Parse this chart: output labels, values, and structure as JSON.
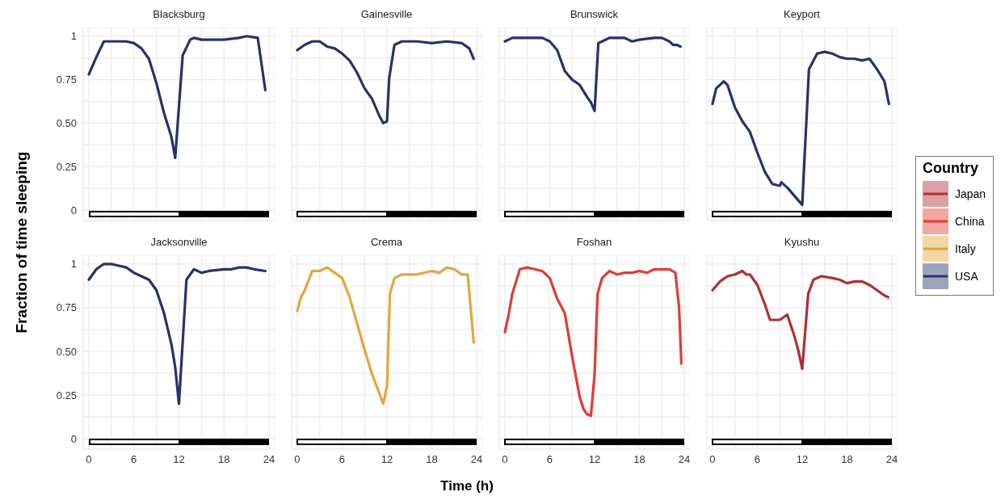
{
  "chart_data": [
    {
      "type": "line",
      "title": "Blacksburg",
      "ylabel": "Fraction of time sleeping",
      "xlim": [
        -0.75,
        24.75
      ],
      "xticks": [
        0,
        {
          "value": 3,
          "label": null
        },
        6,
        {
          "value": 9,
          "label": null
        },
        12,
        {
          "value": 15,
          "label": null
        },
        18,
        {
          "value": 21,
          "label": null
        },
        24
      ],
      "ylim": [
        -0.06,
        1.05
      ],
      "yticks": [
        0,
        {
          "value": 0.125,
          "label": null
        },
        0.25,
        {
          "value": 0.375,
          "label": null
        },
        {
          "value": 0.5,
          "label": "0.50"
        },
        {
          "value": 0.625,
          "label": null
        },
        0.75,
        {
          "value": 0.875,
          "label": null
        },
        1
      ],
      "grid": true,
      "tick_labels": "y",
      "series": [
        {
          "name": "USA",
          "color": "#27326a",
          "x": [
            0,
            1,
            2,
            3,
            4,
            5,
            6,
            7,
            8,
            9,
            10,
            11,
            11.5,
            12.5,
            13.5,
            14,
            15,
            17,
            18,
            20,
            21,
            22.5,
            23.5
          ],
          "values": [
            0.78,
            0.88,
            0.97,
            0.97,
            0.97,
            0.97,
            0.96,
            0.93,
            0.87,
            0.73,
            0.56,
            0.42,
            0.3,
            0.89,
            0.98,
            0.99,
            0.98,
            0.98,
            0.98,
            0.99,
            1,
            0.99,
            0.69
          ]
        }
      ]
    },
    {
      "type": "line",
      "title": "Gainesville",
      "xlim": [
        -0.75,
        24.75
      ],
      "xticks": [
        0,
        3,
        6,
        9,
        12,
        15,
        18,
        21,
        24
      ],
      "ylim": [
        -0.06,
        1.05
      ],
      "yticks": [
        0,
        0.125,
        0.25,
        0.375,
        0.5,
        0.625,
        0.75,
        0.875,
        1
      ],
      "grid": true,
      "tick_labels": false,
      "series": [
        {
          "name": "USA",
          "color": "#27326a",
          "x": [
            0,
            1,
            2,
            3,
            4,
            5,
            6,
            7,
            8,
            9,
            10,
            11,
            11.5,
            12,
            12.3,
            13,
            14,
            16,
            18,
            20,
            22,
            23,
            23.6
          ],
          "values": [
            0.92,
            0.95,
            0.97,
            0.97,
            0.94,
            0.93,
            0.9,
            0.86,
            0.79,
            0.7,
            0.64,
            0.54,
            0.5,
            0.51,
            0.76,
            0.95,
            0.97,
            0.97,
            0.96,
            0.97,
            0.96,
            0.93,
            0.87
          ]
        }
      ]
    },
    {
      "type": "line",
      "title": "Brunswick",
      "xlim": [
        -0.75,
        24.75
      ],
      "xticks": [
        0,
        3,
        6,
        9,
        12,
        15,
        18,
        21,
        24
      ],
      "ylim": [
        -0.06,
        1.05
      ],
      "yticks": [
        0,
        0.125,
        0.25,
        0.375,
        0.5,
        0.625,
        0.75,
        0.875,
        1
      ],
      "grid": true,
      "tick_labels": false,
      "series": [
        {
          "name": "USA",
          "color": "#27326a",
          "x": [
            0,
            1,
            2,
            4,
            5,
            6,
            7,
            8,
            9,
            10,
            11,
            11.5,
            12,
            12.5,
            13,
            14,
            16,
            17,
            18,
            20,
            21,
            22,
            22.5,
            23,
            23.5
          ],
          "values": [
            0.97,
            0.99,
            0.99,
            0.99,
            0.99,
            0.97,
            0.92,
            0.8,
            0.75,
            0.72,
            0.65,
            0.62,
            0.57,
            0.96,
            0.97,
            0.99,
            0.99,
            0.97,
            0.98,
            0.99,
            0.99,
            0.97,
            0.95,
            0.95,
            0.94
          ]
        }
      ]
    },
    {
      "type": "line",
      "title": "Keyport",
      "xlim": [
        -0.75,
        24.75
      ],
      "xticks": [
        0,
        3,
        6,
        9,
        12,
        15,
        18,
        21,
        24
      ],
      "ylim": [
        -0.06,
        1.05
      ],
      "yticks": [
        0,
        0.125,
        0.25,
        0.375,
        0.5,
        0.625,
        0.75,
        0.875,
        1
      ],
      "grid": true,
      "tick_labels": false,
      "series": [
        {
          "name": "USA",
          "color": "#27326a",
          "x": [
            0,
            0.5,
            1,
            1.5,
            2,
            3,
            4,
            5,
            6,
            7,
            8,
            9,
            9.2,
            10,
            11,
            12,
            12.9,
            14,
            15,
            16,
            17,
            18,
            19,
            20,
            21,
            22,
            23,
            23.6
          ],
          "values": [
            0.61,
            0.7,
            0.72,
            0.74,
            0.72,
            0.59,
            0.51,
            0.45,
            0.33,
            0.22,
            0.15,
            0.14,
            0.16,
            0.13,
            0.08,
            0.03,
            0.81,
            0.9,
            0.91,
            0.9,
            0.88,
            0.87,
            0.87,
            0.86,
            0.87,
            0.81,
            0.74,
            0.61
          ]
        }
      ]
    },
    {
      "type": "line",
      "title": "Jacksonville",
      "xlim": [
        -0.75,
        24.75
      ],
      "xticks": [
        0,
        {
          "value": 3,
          "label": null
        },
        6,
        {
          "value": 9,
          "label": null
        },
        12,
        {
          "value": 15,
          "label": null
        },
        18,
        {
          "value": 21,
          "label": null
        },
        24
      ],
      "ylim": [
        -0.06,
        1.05
      ],
      "yticks": [
        0,
        {
          "value": 0.125,
          "label": null
        },
        0.25,
        {
          "value": 0.375,
          "label": null
        },
        {
          "value": 0.5,
          "label": "0.50"
        },
        {
          "value": 0.625,
          "label": null
        },
        0.75,
        {
          "value": 0.875,
          "label": null
        },
        1
      ],
      "grid": true,
      "series": [
        {
          "name": "USA",
          "color": "#27326a",
          "x": [
            0,
            1,
            2,
            3,
            4,
            5,
            6,
            7,
            8,
            9,
            10,
            11,
            11.5,
            12,
            13,
            14,
            15,
            16,
            18,
            19,
            20,
            21,
            22,
            23.5
          ],
          "values": [
            0.91,
            0.97,
            1,
            1,
            0.99,
            0.98,
            0.95,
            0.93,
            0.91,
            0.85,
            0.72,
            0.54,
            0.41,
            0.2,
            0.91,
            0.97,
            0.95,
            0.96,
            0.97,
            0.97,
            0.98,
            0.98,
            0.97,
            0.96
          ]
        }
      ]
    },
    {
      "type": "line",
      "title": "Crema",
      "xlabel": "Time (h)",
      "xlim": [
        -0.75,
        24.75
      ],
      "xticks": [
        0,
        {
          "value": 3,
          "label": null
        },
        6,
        {
          "value": 9,
          "label": null
        },
        12,
        {
          "value": 15,
          "label": null
        },
        18,
        {
          "value": 21,
          "label": null
        },
        24
      ],
      "ylim": [
        -0.06,
        1.05
      ],
      "yticks": [
        0,
        0.125,
        0.25,
        0.375,
        0.5,
        0.625,
        0.75,
        0.875,
        1
      ],
      "grid": true,
      "tick_labels": "x",
      "series": [
        {
          "name": "Italy",
          "color": "#e3a53c",
          "x": [
            0,
            0.5,
            1,
            2,
            3,
            4,
            5,
            6,
            7,
            8,
            9,
            10,
            11.5,
            12,
            12.4,
            13,
            14,
            16,
            18,
            19,
            20,
            21,
            22,
            22.8,
            23.6
          ],
          "values": [
            0.73,
            0.81,
            0.85,
            0.96,
            0.96,
            0.98,
            0.95,
            0.92,
            0.81,
            0.66,
            0.51,
            0.37,
            0.2,
            0.3,
            0.83,
            0.92,
            0.94,
            0.94,
            0.96,
            0.95,
            0.98,
            0.97,
            0.94,
            0.94,
            0.55
          ]
        }
      ]
    },
    {
      "type": "line",
      "title": "Foshan",
      "xlim": [
        -0.75,
        24.75
      ],
      "xticks": [
        0,
        {
          "value": 3,
          "label": null
        },
        6,
        {
          "value": 9,
          "label": null
        },
        12,
        {
          "value": 15,
          "label": null
        },
        18,
        {
          "value": 21,
          "label": null
        },
        24
      ],
      "ylim": [
        -0.06,
        1.05
      ],
      "yticks": [
        0,
        0.125,
        0.25,
        0.375,
        0.5,
        0.625,
        0.75,
        0.875,
        1
      ],
      "grid": true,
      "tick_labels": "x",
      "series": [
        {
          "name": "China",
          "color": "#e03c35",
          "x": [
            0,
            0.5,
            1,
            1.5,
            2,
            3,
            4,
            5,
            6,
            7,
            8,
            9,
            10,
            10.5,
            11,
            11.5,
            12,
            12.4,
            13,
            14,
            15,
            16,
            17,
            18,
            19,
            20,
            21,
            22,
            22.8,
            23.3,
            23.6
          ],
          "values": [
            0.61,
            0.71,
            0.83,
            0.9,
            0.97,
            0.98,
            0.97,
            0.96,
            0.92,
            0.8,
            0.72,
            0.47,
            0.24,
            0.17,
            0.14,
            0.13,
            0.37,
            0.83,
            0.92,
            0.96,
            0.94,
            0.95,
            0.95,
            0.96,
            0.95,
            0.97,
            0.97,
            0.97,
            0.95,
            0.75,
            0.43
          ]
        }
      ]
    },
    {
      "type": "line",
      "title": "Kyushu",
      "legend": "right",
      "legend_title": "Country",
      "xlim": [
        -0.75,
        24.75
      ],
      "xticks": [
        0,
        {
          "value": 3,
          "label": null
        },
        6,
        {
          "value": 9,
          "label": null
        },
        12,
        {
          "value": 15,
          "label": null
        },
        18,
        {
          "value": 21,
          "label": null
        },
        24
      ],
      "ylim": [
        -0.06,
        1.05
      ],
      "yticks": [
        0,
        0.125,
        0.25,
        0.375,
        0.5,
        0.625,
        0.75,
        0.875,
        1
      ],
      "grid": true,
      "tick_labels": "x",
      "series": [
        {
          "name": "Japan",
          "color": "#b02d37",
          "x": [
            0,
            1,
            2,
            3,
            4,
            4.5,
            5,
            6,
            7,
            7.7,
            8,
            9,
            10,
            11,
            11.5,
            12,
            12.8,
            13.5,
            14.5,
            16,
            17,
            18,
            19,
            20,
            21,
            22,
            23,
            23.5
          ],
          "values": [
            0.85,
            0.9,
            0.93,
            0.94,
            0.96,
            0.94,
            0.94,
            0.88,
            0.77,
            0.68,
            0.68,
            0.68,
            0.71,
            0.58,
            0.5,
            0.4,
            0.83,
            0.91,
            0.93,
            0.92,
            0.91,
            0.89,
            0.9,
            0.9,
            0.88,
            0.85,
            0.82,
            0.81
          ]
        }
      ]
    }
  ]
}
